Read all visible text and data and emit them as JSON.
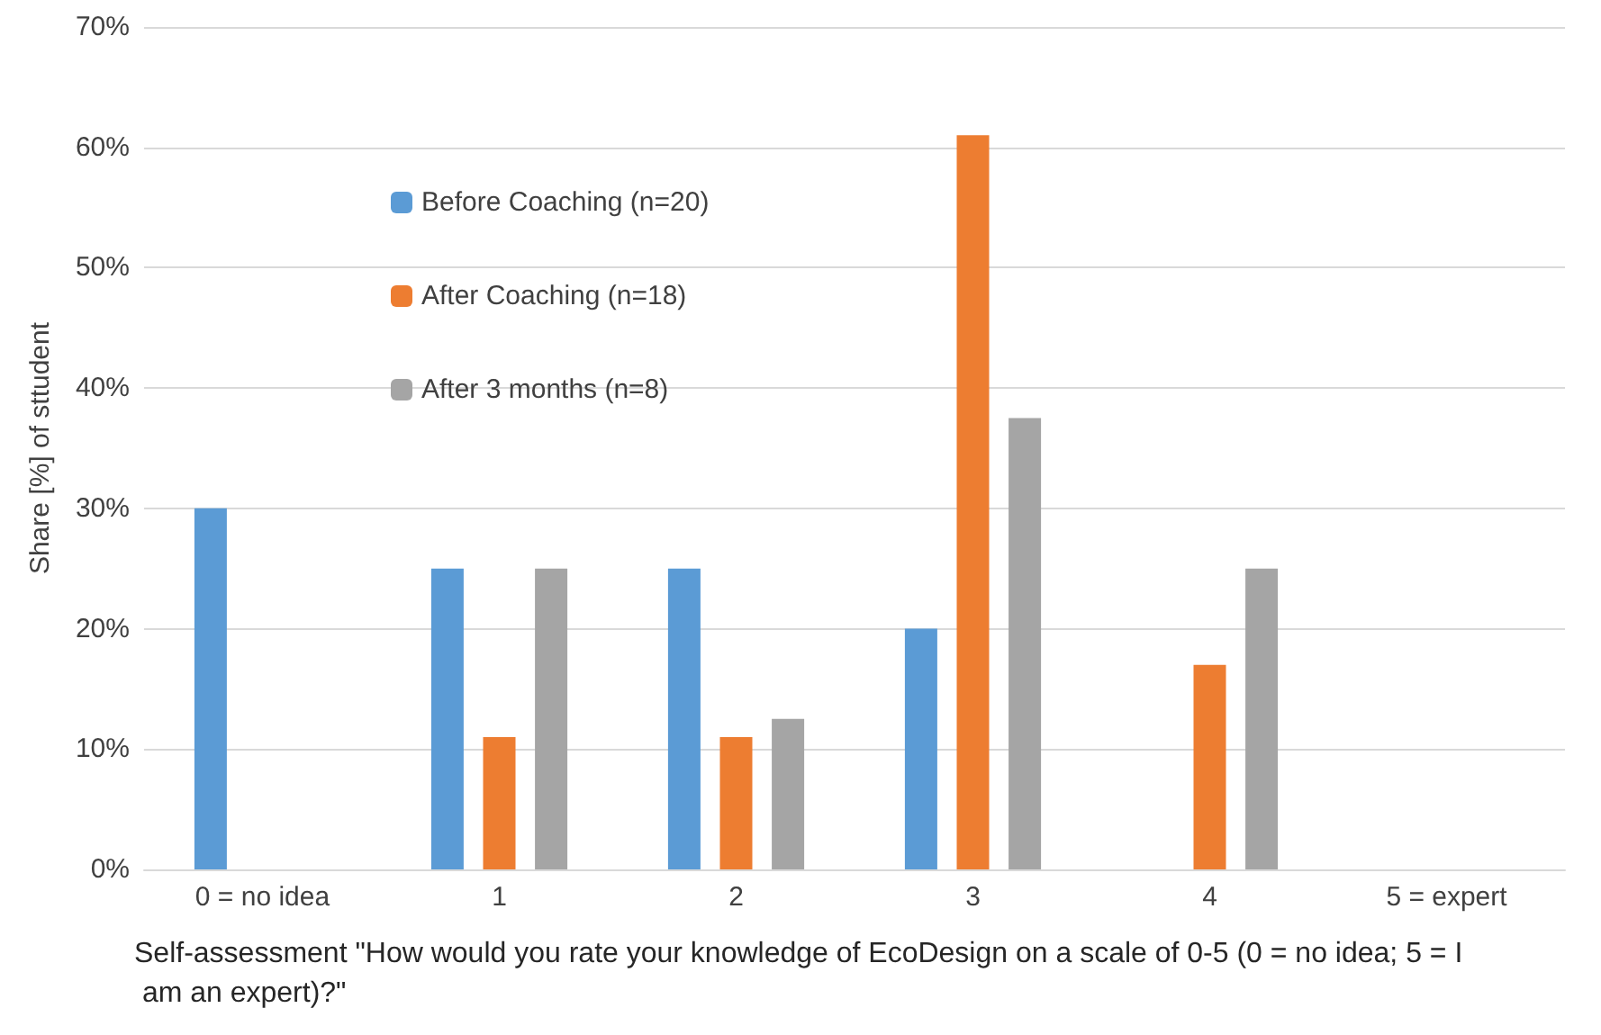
{
  "chart_data": {
    "type": "bar",
    "xlabel": "Self-assessment \"How would you rate your knowledge of EcoDesign on a scale of 0-5 (0 = no idea; 5 = I am an expert)?\"",
    "ylabel": "Share [%] of sttudent",
    "categories": [
      "0 = no idea",
      "1",
      "2",
      "3",
      "4",
      "5 = expert"
    ],
    "series": [
      {
        "name": "Before Coaching (n=20)",
        "color": "#5b9bd5",
        "values": [
          30,
          25,
          25,
          20,
          0,
          0
        ]
      },
      {
        "name": "After Coaching (n=18)",
        "color": "#ed7d31",
        "values": [
          0,
          11,
          11,
          61,
          17,
          0
        ]
      },
      {
        "name": "After 3 months (n=8)",
        "color": "#a5a5a5",
        "values": [
          0,
          25,
          12.5,
          37.5,
          25,
          0
        ]
      }
    ],
    "ylim": [
      0,
      70
    ],
    "yticks": [
      {
        "value": 0,
        "label": "0%"
      },
      {
        "value": 10,
        "label": "10%"
      },
      {
        "value": 20,
        "label": "20%"
      },
      {
        "value": 30,
        "label": "30%"
      },
      {
        "value": 40,
        "label": "40%"
      },
      {
        "value": 50,
        "label": "50%"
      },
      {
        "value": 60,
        "label": "60%"
      },
      {
        "value": 70,
        "label": "70%"
      }
    ],
    "grid": "y",
    "legend": "top left"
  }
}
